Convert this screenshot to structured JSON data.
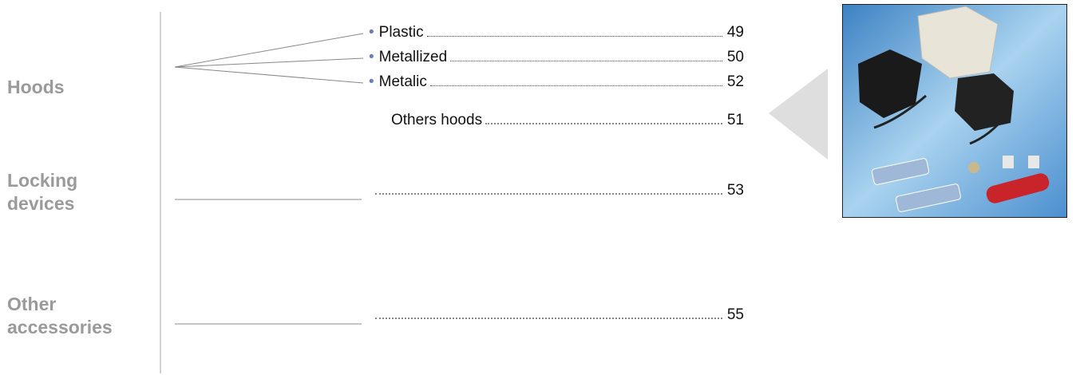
{
  "sections": [
    {
      "label_lines": [
        "Hoods"
      ],
      "items": [
        {
          "name": "Plastic",
          "page": "49"
        },
        {
          "name": "Metallized",
          "page": "50"
        },
        {
          "name": "Metalic",
          "page": "52"
        }
      ],
      "other": {
        "name": "Others hoods",
        "page": "51"
      }
    },
    {
      "label_lines": [
        "Locking",
        "devices"
      ],
      "page": "53"
    },
    {
      "label_lines": [
        "Other",
        "accessories"
      ],
      "page": "55"
    }
  ]
}
